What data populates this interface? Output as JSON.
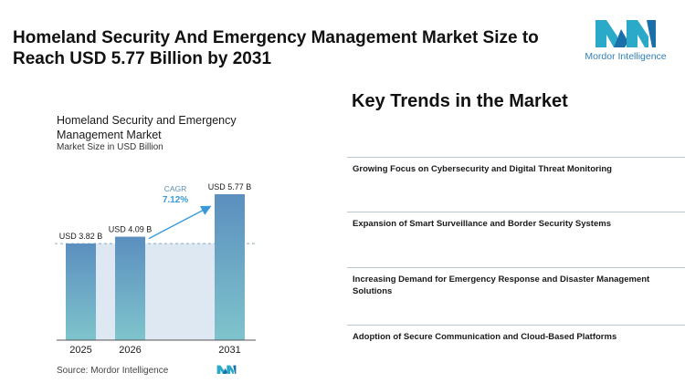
{
  "headline": "Homeland Security And Emergency Management Market Size to Reach USD 5.77 Billion by 2031",
  "brand": {
    "logo_icon": "mordor-intelligence-logo",
    "name": "Mordor Intelligence",
    "color": "#2f7fb6"
  },
  "chart_data": {
    "type": "bar",
    "title": "Homeland Security and Emergency Management Market",
    "subtitle": "Market Size in USD Billion",
    "categories": [
      "2025",
      "2026",
      "2031"
    ],
    "values": [
      3.82,
      4.09,
      5.77
    ],
    "value_labels": [
      "USD 3.82 B",
      "USD 4.09 B",
      "USD 5.77 B"
    ],
    "ylim": [
      0,
      6
    ],
    "cagr_label": "CAGR",
    "cagr_value": "7.12%",
    "colors": {
      "bar_top": "#5b8fbf",
      "bar_bottom": "#7fc4cc",
      "band": "#dde8f2",
      "accent": "#3a9ad9"
    }
  },
  "source": "Source:  Mordor Intelligence",
  "trends": {
    "title": "Key Trends in the Market",
    "items": [
      "Growing Focus on Cybersecurity and Digital Threat Monitoring",
      "Expansion of Smart Surveillance and Border Security Systems",
      "Increasing Demand for Emergency Response and Disaster Management Solutions",
      "Adoption of Secure Communication and Cloud-Based Platforms"
    ]
  }
}
